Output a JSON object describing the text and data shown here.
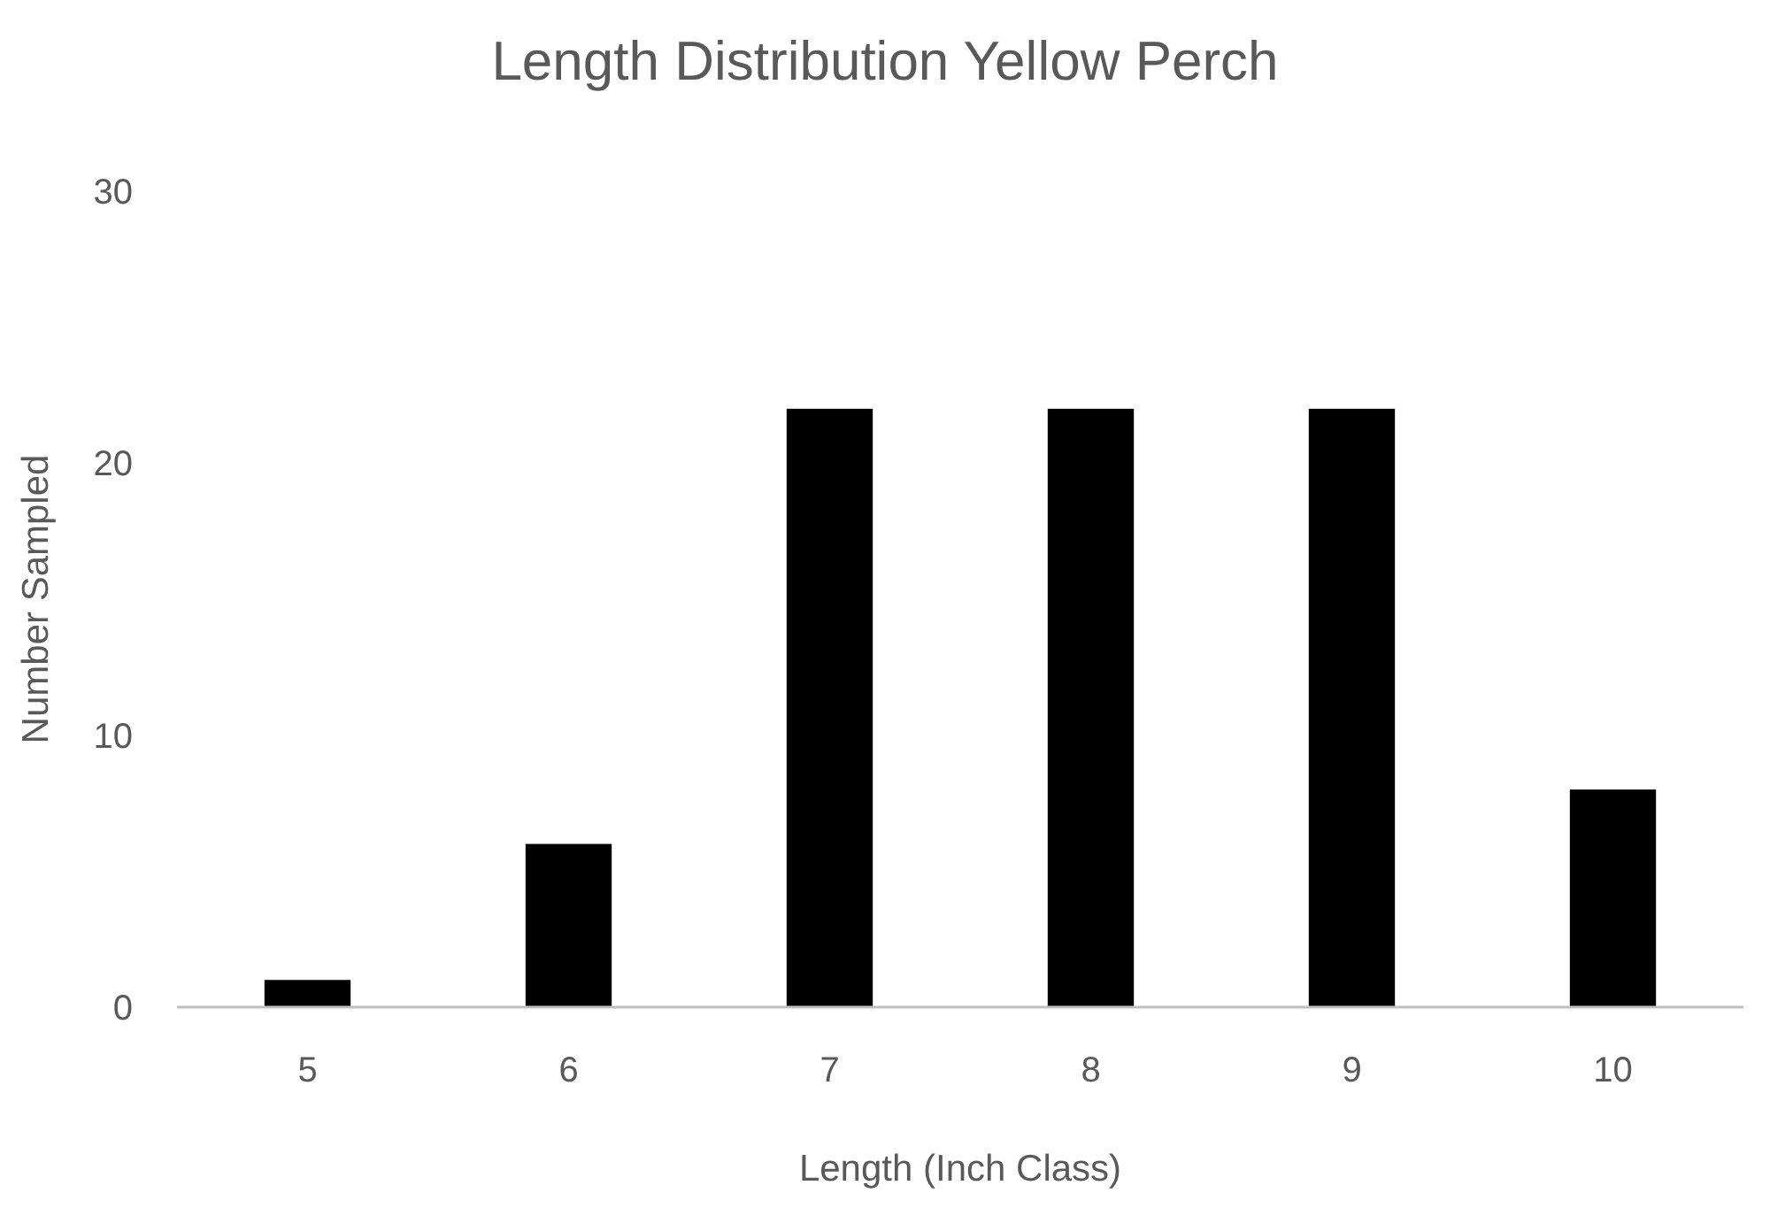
{
  "chart_data": {
    "type": "bar",
    "title": "Length Distribution Yellow Perch",
    "xlabel": "Length (Inch Class)",
    "ylabel": "Number Sampled",
    "categories": [
      "5",
      "6",
      "7",
      "8",
      "9",
      "10"
    ],
    "values": [
      1,
      6,
      22,
      22,
      22,
      8
    ],
    "color": "#000000",
    "ylim": [
      0,
      30
    ],
    "yticks": [
      0,
      10,
      20,
      30
    ],
    "grid": false
  }
}
